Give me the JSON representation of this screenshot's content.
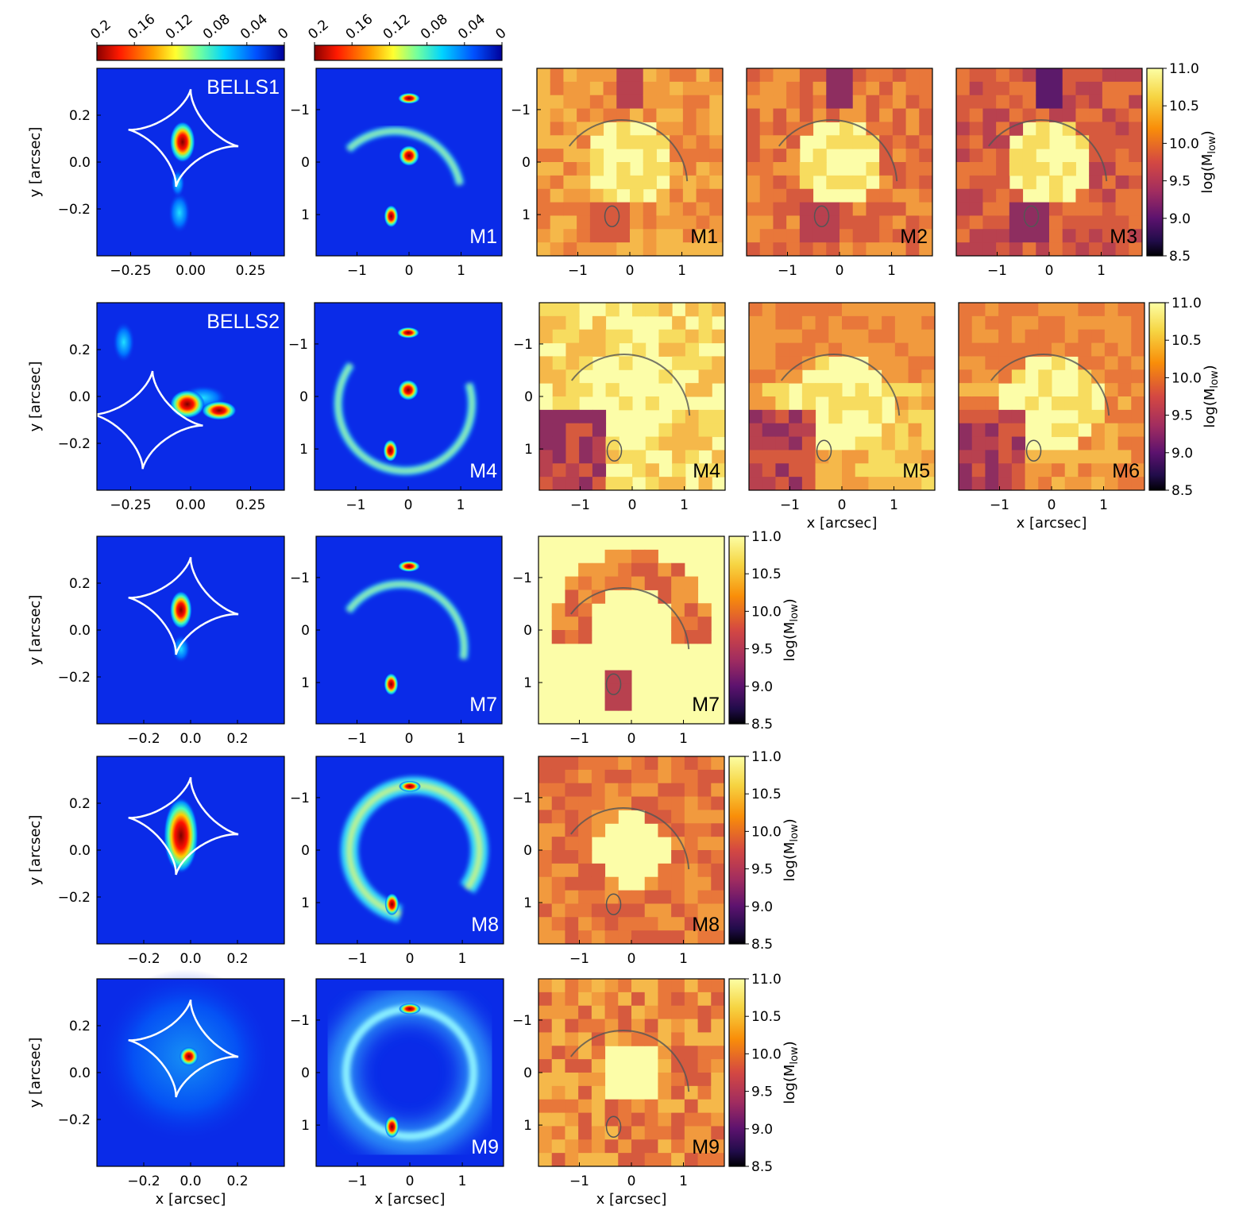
{
  "chart_data": {
    "type": "heatmap",
    "rows": [
      {
        "source_label": "BELLS1",
        "source_ticks": {
          "x": [
            "−0.25",
            "0.00",
            "0.25"
          ],
          "y": [
            "0.2",
            "0.0",
            "−0.2"
          ]
        },
        "image_label": "M1",
        "map_labels": [
          "M1",
          "M2",
          "M3"
        ]
      },
      {
        "source_label": "BELLS2",
        "source_ticks": {
          "x": [
            "−0.25",
            "0.00",
            "0.25"
          ],
          "y": [
            "0.2",
            "0.0",
            "−0.2"
          ]
        },
        "image_label": "M4",
        "map_labels": [
          "M4",
          "M5",
          "M6"
        ]
      },
      {
        "source_label": "",
        "source_ticks": {
          "x": [
            "−0.2",
            "0.0",
            "0.2"
          ],
          "y": [
            "0.2",
            "0.0",
            "−0.2"
          ]
        },
        "image_label": "M7",
        "map_labels": [
          "M7"
        ]
      },
      {
        "source_label": "",
        "source_ticks": {
          "x": [
            "−0.2",
            "0.0",
            "0.2"
          ],
          "y": [
            "0.2",
            "0.0",
            "−0.2"
          ]
        },
        "image_label": "M8",
        "map_labels": [
          "M8"
        ]
      },
      {
        "source_label": "",
        "source_ticks": {
          "x": [
            "−0.2",
            "0.0",
            "0.2"
          ],
          "y": [
            "0.2",
            "0.0",
            "−0.2"
          ]
        },
        "image_label": "M9",
        "map_labels": [
          "M9"
        ]
      }
    ],
    "image_ticks": [
      "−1",
      "0",
      "1"
    ],
    "top_colorbar": {
      "ticks": [
        "0.2",
        "0.16",
        "0.12",
        "0.08",
        "0.04",
        "0"
      ],
      "range": [
        0.2,
        0
      ],
      "colormap": "jet"
    },
    "mass_colorbar": {
      "label": "log(M",
      "label_sub": "low",
      "label_close": ")",
      "ticks": [
        "11.0",
        "10.5",
        "10.0",
        "9.5",
        "9.0",
        "8.5"
      ],
      "range": [
        8.5,
        11.0
      ],
      "colormap": "inferno"
    },
    "xlabel": "x [arcsec]",
    "ylabel": "y [arcsec]",
    "colors": {
      "jet_background": "#0a2be8",
      "caustic": "#ffffff",
      "map_high": "#fcfda8",
      "contour": "#555555"
    }
  }
}
